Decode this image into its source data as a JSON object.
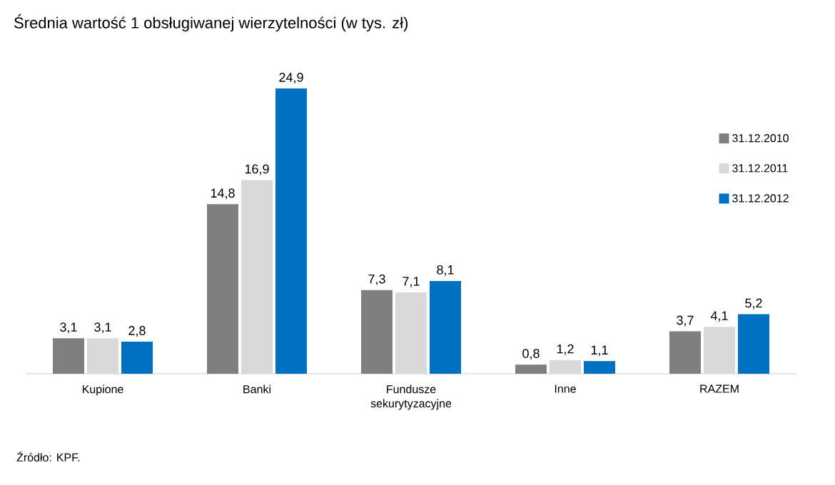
{
  "chart_data": {
    "type": "bar",
    "title": "Średnia wartość 1 obsługiwanej wierzytelności  (w tys. zł)",
    "categories": [
      "Kupione",
      "Banki",
      "Fundusze sekurytyzacyjne",
      "Inne",
      "RAZEM"
    ],
    "series": [
      {
        "name": "31.12.2010",
        "color": "#7f7f7f",
        "values": [
          3.1,
          14.8,
          7.3,
          0.8,
          3.7
        ],
        "value_labels": [
          "3,1",
          "14,8",
          "7,3",
          "0,8",
          "3,7"
        ]
      },
      {
        "name": "31.12.2011",
        "color": "#d9d9d9",
        "values": [
          3.1,
          16.9,
          7.1,
          1.2,
          4.1
        ],
        "value_labels": [
          "3,1",
          "16,9",
          "7,1",
          "1,2",
          "4,1"
        ]
      },
      {
        "name": "31.12.2012",
        "color": "#0070c0",
        "values": [
          2.8,
          24.9,
          8.1,
          1.1,
          5.2
        ],
        "value_labels": [
          "2,8",
          "24,9",
          "8,1",
          "1,1",
          "5,2"
        ]
      }
    ],
    "legend": "right",
    "annotations": [
      "Źródło: KPF."
    ]
  }
}
